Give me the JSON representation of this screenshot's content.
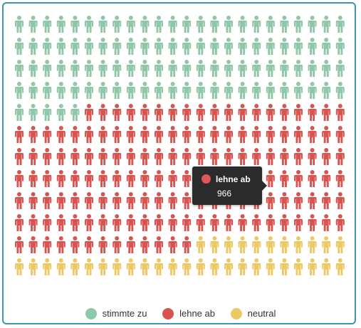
{
  "chart_data": {
    "type": "pictogram",
    "icon": "person-icon",
    "columns": 24,
    "rows": 12,
    "unit_per_icon": "",
    "series": [
      {
        "name": "stimmte zu",
        "count": 101,
        "color": "#8fc7a8"
      },
      {
        "name": "lehne ab",
        "count": 152,
        "color": "#d9534f"
      },
      {
        "name": "neutral",
        "count": 35,
        "color": "#ecc964"
      }
    ],
    "tooltip": {
      "series": "lehne ab",
      "value": "966",
      "color": "#e05555"
    },
    "legend": {
      "position": "bottom-center"
    }
  }
}
